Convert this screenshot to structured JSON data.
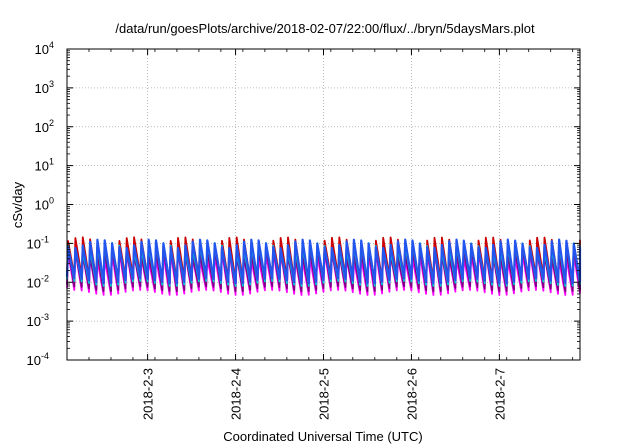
{
  "chart_data": {
    "type": "line",
    "title": "/data/run/goesPlots/archive/2018-02-07/22:00/flux/../bryn/5daysMars.plot",
    "xlabel": "Coordinated Universal Time (UTC)",
    "ylabel": "cSv/day",
    "yscale": "log",
    "ylim": [
      0.0001,
      10000
    ],
    "xlim": [
      "2018-02-02 02:00",
      "2018-02-07 22:00"
    ],
    "grid": true,
    "x_tick_labels": [
      "2018-2-3",
      "2018-2-4",
      "2018-2-5",
      "2018-2-6",
      "2018-2-7"
    ],
    "y_ticks": [
      {
        "base": "10",
        "exp": "-4",
        "value": 0.0001
      },
      {
        "base": "10",
        "exp": "-3",
        "value": 0.001
      },
      {
        "base": "10",
        "exp": "-2",
        "value": 0.01
      },
      {
        "base": "10",
        "exp": "-1",
        "value": 0.1
      },
      {
        "base": "10",
        "exp": "0",
        "value": 1
      },
      {
        "base": "10",
        "exp": "1",
        "value": 10
      },
      {
        "base": "10",
        "exp": "2",
        "value": 100
      },
      {
        "base": "10",
        "exp": "3",
        "value": 1000
      },
      {
        "base": "10",
        "exp": "4",
        "value": 10000
      }
    ],
    "pattern": {
      "cycle_hours": 2,
      "peak_value": 0.1,
      "trough_value": 0.011,
      "start_hour_of_day": 2,
      "duration_hours": 140
    },
    "series": [
      {
        "color": "#cc0000",
        "scale": 1.15
      },
      {
        "color": "#ff00ff",
        "scale": 0.5
      },
      {
        "color": "#800080",
        "scale": 0.62
      },
      {
        "color": "#00cccc",
        "scale": 0.85
      },
      {
        "color": "#2255ee",
        "scale": 1.0
      }
    ]
  }
}
